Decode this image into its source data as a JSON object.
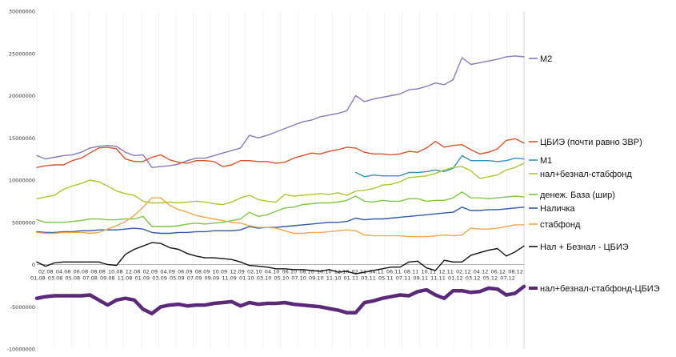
{
  "chart_data": {
    "type": "line",
    "grid": "vertical-lines",
    "ylim": [
      -10000000,
      30000000
    ],
    "y_ticks": [
      {
        "value": 30000000,
        "label": "30000000"
      },
      {
        "value": 25000000,
        "label": "25000000"
      },
      {
        "value": 20000000,
        "label": "20000000"
      },
      {
        "value": 15000000,
        "label": "15000000"
      },
      {
        "value": 10000000,
        "label": "10000000"
      },
      {
        "value": 5000000,
        "label": "5000000"
      },
      {
        "value": 0,
        "label": "0"
      },
      {
        "value": -5000000,
        "label": "-5000000"
      },
      {
        "value": -10000000,
        "label": "-10000000"
      }
    ],
    "x_labels_row1": [
      "02.08",
      "04.08",
      "06.08",
      "08.08",
      "10.08",
      "12.08",
      "02.09",
      "04.09",
      "06.09",
      "08.09",
      "10.09",
      "12.09",
      "02.10",
      "04.10",
      "06.10",
      "08.10",
      "10.10",
      "12.10",
      "02.11",
      "04.11",
      "06.11",
      "08.11",
      "10.11",
      "12.11",
      "02.12",
      "04.12",
      "06.12",
      "08.12"
    ],
    "x_labels_row2": [
      "01.08",
      "03.08",
      "05.08",
      "07.08",
      "09.08",
      "11.08",
      "01.09",
      "03.09",
      "05.09",
      "07.09",
      "09.09",
      "11.09",
      "01.10",
      "03.10",
      "05.10",
      "07.10",
      "09.10",
      "11.10",
      "01.11",
      "03.11",
      "05.11",
      "07.11",
      "09.11",
      "11.11",
      "01.12",
      "03.12",
      "05.12",
      "07.12"
    ],
    "series": [
      {
        "name": "M2",
        "color": "#8a78b4",
        "width": 1.4,
        "segment": [
          0,
          55
        ],
        "values": [
          12.9,
          12.5,
          12.7,
          12.9,
          13.0,
          13.3,
          13.8,
          14.0,
          14.1,
          14.0,
          13.3,
          12.9,
          13.0,
          11.5,
          11.6,
          11.7,
          11.9,
          12.3,
          12.6,
          12.6,
          12.9,
          13.2,
          13.5,
          13.8,
          15.3,
          15.0,
          15.3,
          15.7,
          16.1,
          16.5,
          16.9,
          17.1,
          17.5,
          17.7,
          17.9,
          18.2,
          20.0,
          19.3,
          19.6,
          19.8,
          20.0,
          20.2,
          20.7,
          20.8,
          21.1,
          21.5,
          21.3,
          21.9,
          24.5,
          23.7,
          23.9,
          24.1,
          24.3,
          24.6,
          24.7,
          24.6
        ]
      },
      {
        "name": "ЦБИЭ",
        "color": "#d9532b",
        "width": 1.4,
        "segment": [
          0,
          55
        ],
        "values": [
          11.5,
          11.7,
          11.8,
          11.8,
          12.3,
          12.6,
          13.2,
          13.8,
          13.9,
          13.7,
          12.5,
          12.2,
          12.2,
          12.7,
          13.0,
          12.4,
          12.1,
          12.0,
          12.3,
          12.3,
          12.2,
          11.6,
          11.8,
          12.3,
          12.3,
          12.2,
          12.2,
          12.0,
          12.1,
          12.6,
          12.9,
          13.2,
          13.1,
          13.4,
          13.6,
          13.9,
          13.8,
          13.3,
          13.1,
          13.1,
          13.0,
          13.1,
          13.4,
          13.3,
          13.8,
          14.6,
          13.9,
          14.1,
          14.2,
          13.6,
          13.1,
          13.3,
          13.7,
          14.7,
          14.9,
          14.4
        ]
      },
      {
        "name": "M1",
        "color": "#2f94b8",
        "width": 1.4,
        "segment": [
          36,
          55
        ],
        "values": [
          10.9,
          10.4,
          10.6,
          10.5,
          10.5,
          10.5,
          10.9,
          10.9,
          11.0,
          11.2,
          11.0,
          11.4,
          12.9,
          12.3,
          12.3,
          12.3,
          12.2,
          12.3,
          12.6,
          12.5
        ]
      },
      {
        "name": "нал+безнал-стабфонд",
        "color": "#a8c832",
        "width": 1.4,
        "segment": [
          0,
          55
        ],
        "values": [
          7.8,
          8.0,
          8.2,
          8.9,
          9.3,
          9.6,
          10.0,
          9.8,
          9.3,
          8.7,
          8.4,
          8.2,
          7.5,
          7.3,
          7.3,
          7.4,
          7.3,
          7.4,
          7.5,
          7.4,
          7.2,
          7.1,
          7.4,
          7.9,
          8.2,
          7.7,
          7.5,
          7.4,
          8.3,
          8.1,
          8.2,
          8.3,
          8.4,
          8.3,
          8.5,
          8.2,
          8.7,
          8.8,
          9.0,
          9.4,
          9.5,
          9.8,
          10.3,
          10.4,
          10.5,
          10.8,
          11.2,
          11.5,
          11.6,
          11.1,
          10.2,
          10.4,
          10.6,
          11.2,
          11.5,
          12.0
        ]
      },
      {
        "name": "денеж. База (шир)",
        "color": "#7dc743",
        "width": 1.4,
        "segment": [
          0,
          55
        ],
        "values": [
          5.3,
          5.0,
          5.0,
          5.0,
          5.1,
          5.2,
          5.4,
          5.4,
          5.3,
          5.3,
          5.4,
          5.4,
          5.7,
          4.5,
          4.5,
          4.5,
          4.6,
          4.8,
          4.9,
          4.8,
          4.9,
          5.0,
          5.2,
          5.4,
          6.2,
          5.7,
          5.9,
          6.3,
          6.7,
          6.8,
          7.1,
          7.2,
          7.3,
          7.3,
          7.4,
          7.6,
          8.1,
          7.5,
          7.4,
          7.6,
          7.5,
          7.5,
          7.8,
          7.8,
          7.5,
          7.6,
          7.6,
          7.9,
          8.6,
          7.9,
          7.9,
          7.8,
          7.9,
          8.0,
          8.1,
          8.0
        ]
      },
      {
        "name": "Наличка",
        "color": "#2e5aa6",
        "width": 1.4,
        "segment": [
          0,
          55
        ],
        "values": [
          3.9,
          3.8,
          3.8,
          3.9,
          3.9,
          4.0,
          4.0,
          4.1,
          4.1,
          4.1,
          4.2,
          4.3,
          4.2,
          3.8,
          3.7,
          3.7,
          3.8,
          3.8,
          3.9,
          3.9,
          4.0,
          4.0,
          4.0,
          4.1,
          4.5,
          4.3,
          4.4,
          4.4,
          4.5,
          4.6,
          4.7,
          4.8,
          4.9,
          5.0,
          5.0,
          5.1,
          5.5,
          5.3,
          5.4,
          5.4,
          5.5,
          5.6,
          5.7,
          5.8,
          5.9,
          6.0,
          6.1,
          6.2,
          6.8,
          6.4,
          6.4,
          6.5,
          6.5,
          6.6,
          6.7,
          6.8
        ]
      },
      {
        "name": "стабфонд",
        "color": "#f0a848",
        "width": 1.4,
        "segment": [
          0,
          55
        ],
        "values": [
          3.8,
          3.7,
          3.7,
          3.8,
          3.8,
          3.8,
          3.7,
          3.8,
          4.2,
          4.6,
          5.1,
          5.8,
          6.8,
          7.9,
          7.9,
          7.0,
          6.5,
          6.2,
          5.8,
          5.6,
          5.4,
          5.2,
          5.0,
          4.9,
          4.6,
          4.4,
          4.4,
          4.3,
          4.0,
          3.7,
          3.7,
          3.8,
          3.8,
          3.9,
          4.0,
          4.1,
          4.0,
          3.5,
          3.4,
          3.4,
          3.4,
          3.4,
          3.3,
          3.3,
          3.3,
          3.4,
          3.5,
          3.4,
          3.5,
          4.3,
          4.2,
          4.2,
          4.3,
          4.5,
          4.7,
          4.7
        ]
      },
      {
        "name": "Нал + Безнал - ЦБИЭ",
        "color": "#111111",
        "width": 1.4,
        "segment": [
          0,
          55
        ],
        "values": [
          0.3,
          -0.2,
          0.2,
          0.3,
          0.3,
          0.3,
          0.3,
          0.3,
          0.0,
          -0.1,
          1.2,
          1.8,
          2.2,
          2.6,
          2.5,
          2.0,
          1.8,
          1.3,
          1.0,
          0.8,
          0.8,
          0.7,
          0.6,
          0.3,
          -0.1,
          -0.2,
          -0.3,
          -0.5,
          -0.5,
          -0.6,
          -0.6,
          -0.7,
          -0.8,
          -0.6,
          -0.9,
          -0.8,
          -1.1,
          -0.9,
          -0.7,
          -0.5,
          -0.3,
          -0.3,
          0.3,
          0.4,
          -0.4,
          -0.7,
          0.5,
          0.3,
          0.3,
          1.1,
          1.4,
          1.7,
          1.9,
          1.0,
          1.5,
          2.2
        ]
      },
      {
        "name": "нал+безнал-стабфонд-ЦБИЭ",
        "color": "#5a2a78",
        "width": 4.5,
        "segment": [
          0,
          55
        ],
        "values": [
          -4.0,
          -3.8,
          -3.7,
          -3.7,
          -3.7,
          -3.7,
          -3.6,
          -4.2,
          -4.8,
          -4.2,
          -4.0,
          -4.2,
          -5.3,
          -5.8,
          -5.0,
          -4.8,
          -4.7,
          -4.9,
          -4.8,
          -4.8,
          -4.6,
          -4.5,
          -4.4,
          -4.9,
          -4.5,
          -4.7,
          -4.6,
          -4.6,
          -4.5,
          -4.7,
          -4.8,
          -4.9,
          -5.0,
          -5.2,
          -5.4,
          -5.7,
          -5.7,
          -4.5,
          -4.3,
          -4.0,
          -3.8,
          -3.6,
          -3.7,
          -3.2,
          -3.0,
          -3.6,
          -4.0,
          -3.1,
          -3.1,
          -3.3,
          -3.2,
          -2.8,
          -2.9,
          -3.6,
          -3.4,
          -2.6
        ]
      }
    ]
  },
  "legend": {
    "m2": "M2",
    "cbie": "ЦБИЭ",
    "cbie_note": "(почти равно ЗВР)",
    "m1": "M1",
    "nal_beznal_stab": "нал+безнал-стабфонд",
    "den_baza": "денеж. База (шир)",
    "nalichka": "Наличка",
    "stabfond": "стабфонд",
    "nal_beznal_cbie": "Нал + Безнал - ЦБИЭ",
    "nal_beznal_stab_cbie": "нал+безнал-стабфонд-ЦБИЭ"
  }
}
